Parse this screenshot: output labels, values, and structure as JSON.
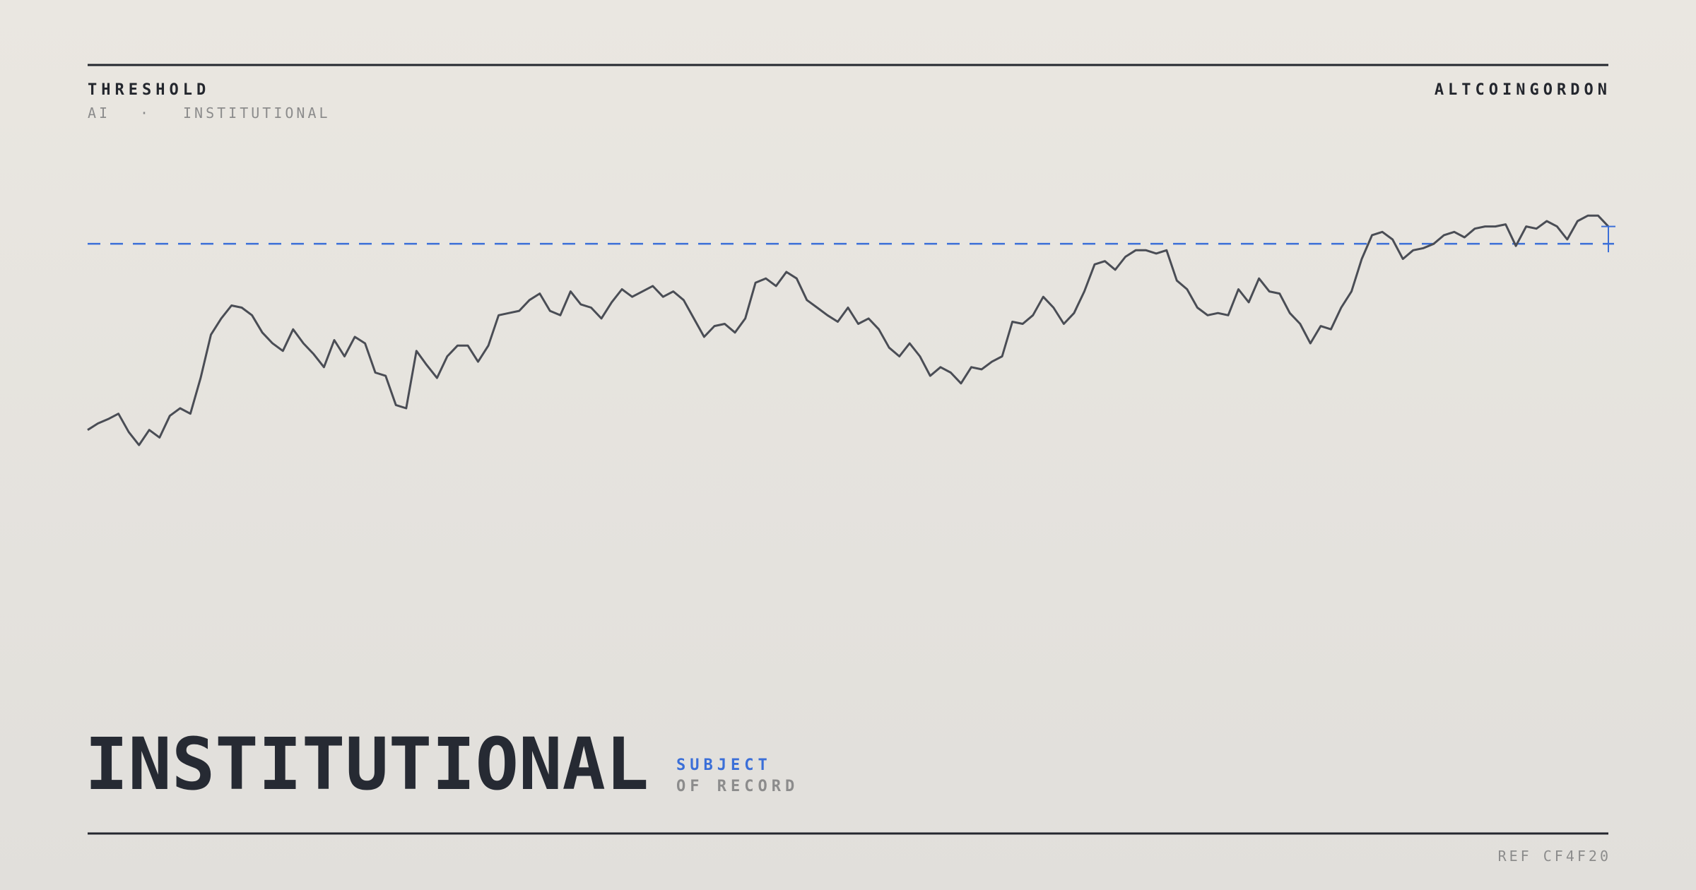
{
  "header": {
    "title": "THRESHOLD",
    "tags": [
      "AI",
      "·",
      "INSTITUTIONAL"
    ],
    "brand": "ALTCOINGORDON"
  },
  "chart_data": {
    "type": "line",
    "color": "#4a4d55",
    "threshold": 214,
    "threshold_color": "#3b6fd8",
    "ylim": [
      0,
      250
    ],
    "values": [
      42,
      48,
      52,
      57,
      40,
      28,
      42,
      35,
      55,
      62,
      57,
      90,
      130,
      145,
      157,
      155,
      148,
      132,
      122,
      115,
      135,
      122,
      112,
      100,
      125,
      110,
      128,
      122,
      95,
      92,
      65,
      62,
      115,
      102,
      90,
      110,
      120,
      120,
      105,
      120,
      148,
      150,
      152,
      162,
      168,
      152,
      148,
      170,
      158,
      155,
      145,
      160,
      172,
      165,
      170,
      175,
      165,
      170,
      162,
      145,
      128,
      138,
      140,
      132,
      145,
      178,
      182,
      175,
      188,
      182,
      162,
      155,
      148,
      142,
      155,
      140,
      145,
      135,
      118,
      110,
      122,
      110,
      92,
      100,
      95,
      85,
      100,
      98,
      105,
      110,
      142,
      140,
      148,
      165,
      155,
      140,
      150,
      170,
      195,
      198,
      190,
      202,
      208,
      208,
      205,
      208,
      180,
      172,
      155,
      148,
      150,
      148,
      172,
      160,
      182,
      170,
      168,
      150,
      140,
      122,
      138,
      135,
      155,
      170,
      200,
      222,
      225,
      218,
      200,
      208,
      210,
      214,
      222,
      225,
      220,
      228,
      230,
      230,
      232,
      212,
      230,
      228,
      235,
      230,
      218,
      235,
      240,
      240,
      230
    ]
  },
  "footer": {
    "headline": "INSTITUTIONAL",
    "tag": "SUBJECT",
    "tag_sub": "OF RECORD",
    "ref": "REF CF4F20"
  }
}
